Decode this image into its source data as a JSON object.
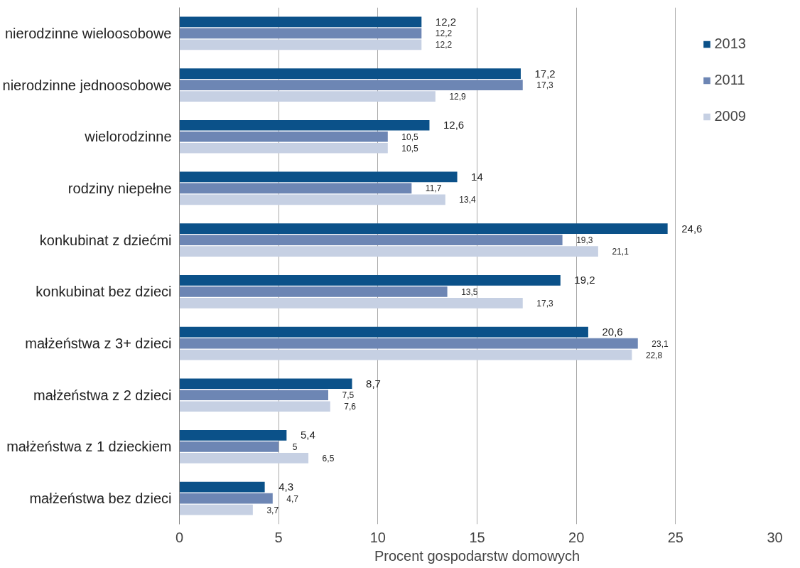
{
  "chart_data": {
    "type": "bar",
    "orientation": "horizontal",
    "xlabel": "Procent gospodarstw domowych",
    "categories": [
      "nierodzinne wieloosobowe",
      "nierodzinne jednoosobowe",
      "wielorodzinne",
      "rodziny niepełne",
      "konkubinat z dziećmi",
      "konkubinat bez dzieci",
      "małżeństwa z 3+ dzieci",
      "małżeństwa z 2 dzieci",
      "małżeństwa z 1 dzieckiem",
      "małżeństwa bez dzieci"
    ],
    "series": [
      {
        "name": "2013",
        "color": "#0b5189",
        "values": [
          12.2,
          17.2,
          12.6,
          14,
          24.6,
          19.2,
          20.6,
          8.7,
          5.4,
          4.3
        ],
        "value_labels": [
          "12,2",
          "17,2",
          "12,6",
          "14",
          "24,6",
          "19,2",
          "20,6",
          "8,7",
          "5,4",
          "4,3"
        ]
      },
      {
        "name": "2011",
        "color": "#6d86b4",
        "values": [
          12.2,
          17.3,
          10.5,
          11.7,
          19.3,
          13.5,
          23.1,
          7.5,
          5,
          4.7
        ],
        "value_labels": [
          "12,2",
          "17,3",
          "10,5",
          "11,7",
          "19,3",
          "13,5",
          "23,1",
          "7,5",
          "5",
          "4,7"
        ]
      },
      {
        "name": "2009",
        "color": "#c6d0e3",
        "values": [
          12.2,
          12.9,
          10.5,
          13.4,
          21.1,
          17.3,
          22.8,
          7.6,
          6.5,
          3.7
        ],
        "value_labels": [
          "12,2",
          "12,9",
          "10,5",
          "13,4",
          "21,1",
          "17,3",
          "22,8",
          "7,6",
          "6,5",
          "3,7"
        ]
      }
    ],
    "xlim": [
      0,
      30
    ],
    "xticks": [
      0,
      5,
      10,
      15,
      20,
      25,
      30
    ],
    "grid": "x",
    "legend": "top right"
  }
}
